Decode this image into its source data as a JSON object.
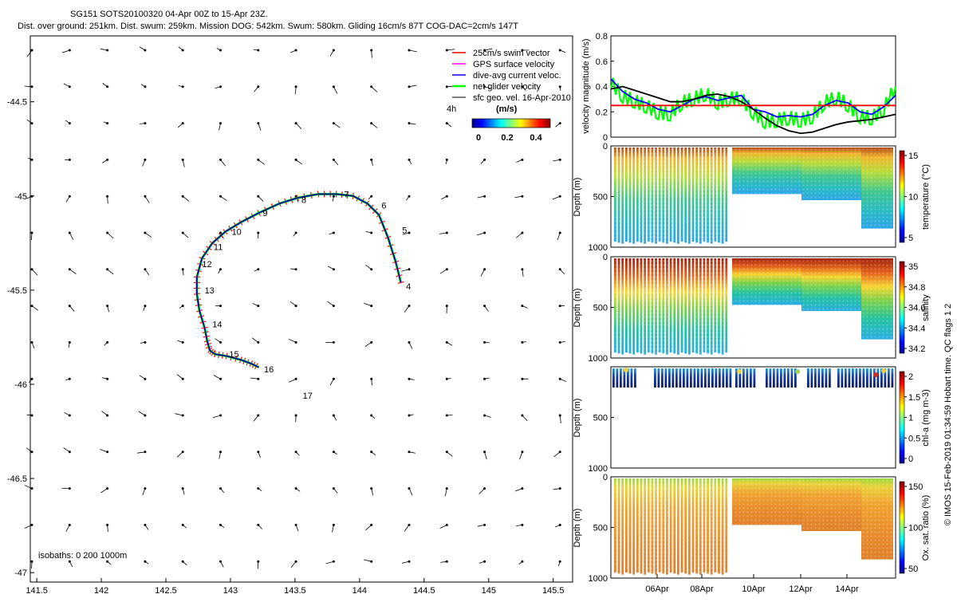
{
  "header": {
    "title": "SG151 SOTS20100320 04-Apr 00Z to 15-Apr 23Z.",
    "subtitle": "Dist. over ground: 251km. Dist. swum: 259km. Mission DOG: 542km. Swum: 580km. Gliding 16cm/s 87T COG-DAC=2cm/s 147T"
  },
  "legend": {
    "items": [
      {
        "label": "25cm/s swim vector",
        "color": "#ff0000",
        "marker": "line"
      },
      {
        "label": "GPS surface velocity",
        "color": "#ff00ff",
        "marker": "line"
      },
      {
        "label": "dive-avg current veloc.",
        "color": "#0000ff",
        "marker": "line"
      },
      {
        "label": "net glider velocity",
        "color": "#00ff00",
        "marker": "line"
      },
      {
        "label": "sfc geo. vel. 16-Apr-2010",
        "color": "#000000",
        "marker": "arrow"
      }
    ],
    "time_step_label": "4h",
    "colorbar_title": "(m/s)",
    "colorbar_ticks": [
      "0",
      "0.2",
      "0.4"
    ]
  },
  "footer": {
    "isobaths": "isobaths: 0   200  1000m",
    "credit": "© IMOS 15-Feb-2019 01:34:59 Hobart time. QC flags 1  2"
  },
  "chart_data": [
    {
      "type": "scatter",
      "title": "map",
      "xlim": [
        141.45,
        145.65
      ],
      "ylim": [
        -47.05,
        -44.15
      ],
      "x_ticks": [
        "141.5",
        "142",
        "142.5",
        "143",
        "143.5",
        "144",
        "144.5",
        "145",
        "145.5"
      ],
      "y_ticks": [
        "-44.5",
        "-45",
        "-45.5",
        "-46",
        "-46.5",
        "-47"
      ],
      "track": {
        "name": "dive-avg current veloc.",
        "lon": [
          144.32,
          144.28,
          144.22,
          144.15,
          144.06,
          143.95,
          143.82,
          143.68,
          143.52,
          143.38,
          143.22,
          143.08,
          142.96,
          142.86,
          142.78,
          142.74,
          142.74,
          142.76,
          142.8,
          142.82,
          142.84,
          142.88,
          142.97,
          143.08,
          143.16,
          143.22
        ],
        "lat": [
          -45.46,
          -45.35,
          -45.22,
          -45.1,
          -45.04,
          -45.0,
          -44.99,
          -44.99,
          -45.01,
          -45.04,
          -45.09,
          -45.14,
          -45.19,
          -45.25,
          -45.33,
          -45.43,
          -45.52,
          -45.61,
          -45.7,
          -45.77,
          -45.82,
          -45.84,
          -45.85,
          -45.87,
          -45.89,
          -45.91
        ]
      },
      "day_labels": [
        {
          "text": "4",
          "lon": 144.36,
          "lat": -45.48
        },
        {
          "text": "5",
          "lon": 144.33,
          "lat": -45.18
        },
        {
          "text": "6",
          "lon": 144.17,
          "lat": -45.05
        },
        {
          "text": "7",
          "lon": 143.88,
          "lat": -44.99
        },
        {
          "text": "8",
          "lon": 143.55,
          "lat": -45.02
        },
        {
          "text": "9",
          "lon": 143.25,
          "lat": -45.09
        },
        {
          "text": "10",
          "lon": 143.01,
          "lat": -45.19
        },
        {
          "text": "11",
          "lon": 142.87,
          "lat": -45.27
        },
        {
          "text": "12",
          "lon": 142.78,
          "lat": -45.36
        },
        {
          "text": "13",
          "lon": 142.8,
          "lat": -45.5
        },
        {
          "text": "14",
          "lon": 142.86,
          "lat": -45.68
        },
        {
          "text": "15",
          "lon": 142.99,
          "lat": -45.84
        },
        {
          "text": "16",
          "lon": 143.26,
          "lat": -45.92
        },
        {
          "text": "17",
          "lon": 143.56,
          "lat": -46.06
        }
      ]
    },
    {
      "type": "line",
      "ylabel": "velocity magnitude (m/s)",
      "ylim": [
        0,
        0.8
      ],
      "y_ticks": [
        "0",
        "0.2",
        "0.4",
        "0.6",
        "0.8"
      ],
      "t": [
        4.0,
        4.5,
        5.0,
        5.5,
        6.0,
        6.5,
        7.0,
        7.5,
        8.0,
        8.5,
        9.0,
        9.5,
        10.0,
        10.5,
        11.0,
        11.5,
        12.0,
        12.5,
        13.0,
        13.5,
        14.0,
        14.5,
        15.0,
        15.5,
        16.0
      ],
      "series": [
        {
          "name": "dive-avg current veloc.",
          "color": "#0000ff",
          "values": [
            0.46,
            0.36,
            0.3,
            0.27,
            0.22,
            0.2,
            0.25,
            0.3,
            0.32,
            0.29,
            0.31,
            0.33,
            0.22,
            0.2,
            0.16,
            0.17,
            0.16,
            0.18,
            0.25,
            0.29,
            0.27,
            0.2,
            0.18,
            0.24,
            0.33
          ]
        },
        {
          "name": "net glider velocity",
          "color": "#00ff00",
          "values": [
            0.43,
            0.32,
            0.28,
            0.24,
            0.19,
            0.18,
            0.27,
            0.3,
            0.34,
            0.27,
            0.3,
            0.3,
            0.19,
            0.12,
            0.13,
            0.15,
            0.13,
            0.16,
            0.27,
            0.31,
            0.25,
            0.16,
            0.15,
            0.22,
            0.4
          ]
        },
        {
          "name": "sfc geo. vel. 16-Apr-2010",
          "color": "#000000",
          "values": [
            0.38,
            0.4,
            0.37,
            0.34,
            0.31,
            0.28,
            0.28,
            0.3,
            0.33,
            0.34,
            0.32,
            0.28,
            0.22,
            0.15,
            0.09,
            0.05,
            0.03,
            0.04,
            0.07,
            0.1,
            0.12,
            0.13,
            0.14,
            0.16,
            0.18
          ]
        },
        {
          "name": "25cm/s swim vector",
          "color": "#ff0000",
          "values": [
            0.25,
            0.25,
            0.25,
            0.25,
            0.25,
            0.25,
            0.25,
            0.25,
            0.25,
            0.25,
            0.25,
            0.25,
            0.25,
            0.25,
            0.25,
            0.25,
            0.25,
            0.25,
            0.25,
            0.25,
            0.25,
            0.25,
            0.25,
            0.25,
            0.25
          ]
        }
      ]
    },
    {
      "type": "heatmap",
      "ylabel": "Depth (m)",
      "clabel": "temperature (°C)",
      "ylim": [
        1000,
        0
      ],
      "y_ticks": [
        "0",
        "500",
        "1000"
      ],
      "c_ticks": [
        "15",
        "10",
        "5"
      ]
    },
    {
      "type": "heatmap",
      "ylabel": "Depth (m)",
      "clabel": "salinity",
      "ylim": [
        1000,
        0
      ],
      "y_ticks": [
        "0",
        "500",
        "1000"
      ],
      "c_ticks": [
        "35",
        "34.8",
        "34.6",
        "34.4",
        "34.2"
      ]
    },
    {
      "type": "heatmap",
      "ylabel": "Depth (m)",
      "clabel": "chl-a (mg m-3)",
      "ylim": [
        1000,
        0
      ],
      "y_ticks": [
        "500",
        "1000"
      ],
      "c_ticks": [
        "2",
        "1.5",
        "1",
        "0.5",
        "0"
      ]
    },
    {
      "type": "heatmap",
      "ylabel": "Depth (m)",
      "clabel": "Ox. sat. ratio (%)",
      "ylim": [
        1000,
        0
      ],
      "y_ticks": [
        "0",
        "500",
        "1000"
      ],
      "c_ticks": [
        "150",
        "100",
        "50"
      ],
      "x_ticks": [
        "06Apr",
        "08Apr",
        "10Apr",
        "12Apr",
        "14Apr"
      ]
    }
  ]
}
